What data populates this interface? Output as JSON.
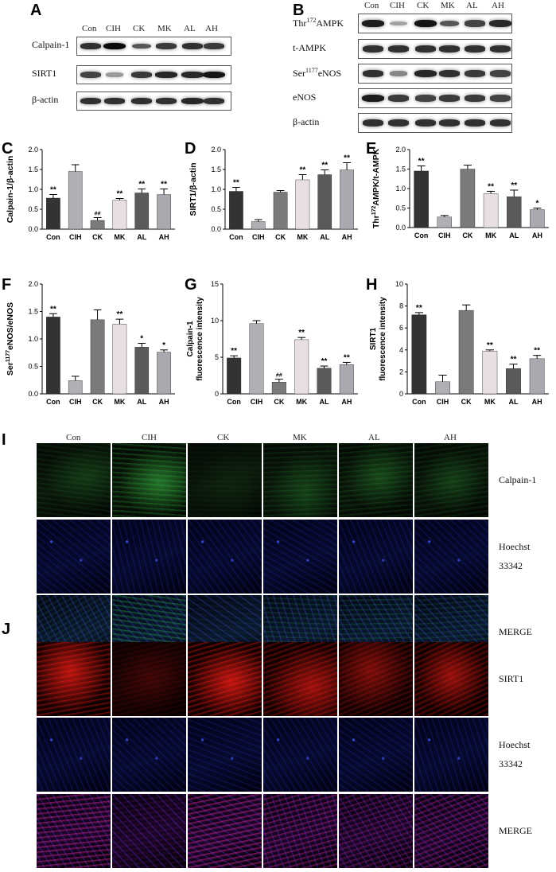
{
  "panel_letters": {
    "A": "A",
    "B": "B",
    "C": "C",
    "D": "D",
    "E": "E",
    "F": "F",
    "G": "G",
    "H": "H",
    "I": "I",
    "J": "J"
  },
  "groups": [
    "Con",
    "CIH",
    "CK",
    "MK",
    "AL",
    "AH"
  ],
  "blot_A": {
    "rows": [
      "Calpain-1",
      "SIRT1",
      "β-actin"
    ],
    "intensity": [
      [
        0.8,
        1.0,
        0.6,
        0.75,
        0.8,
        0.75
      ],
      [
        0.7,
        0.25,
        0.75,
        0.85,
        0.85,
        0.95
      ],
      [
        0.8,
        0.8,
        0.8,
        0.8,
        0.85,
        0.8
      ]
    ]
  },
  "blot_B": {
    "rows": [
      {
        "pre": "Thr",
        "sup": "172",
        "post": "AMPK"
      },
      {
        "pre": "t-AMPK",
        "sup": "",
        "post": ""
      },
      {
        "pre": "Ser",
        "sup": "1177",
        "post": "eNOS"
      },
      {
        "pre": "eNOS",
        "sup": "",
        "post": ""
      },
      {
        "pre": "β-actin",
        "sup": "",
        "post": ""
      }
    ],
    "intensity": [
      [
        0.9,
        0.2,
        0.95,
        0.6,
        0.7,
        0.85
      ],
      [
        0.8,
        0.8,
        0.8,
        0.8,
        0.8,
        0.8
      ],
      [
        0.8,
        0.35,
        0.85,
        0.8,
        0.75,
        0.7
      ],
      [
        0.9,
        0.75,
        0.7,
        0.75,
        0.75,
        0.7
      ],
      [
        0.8,
        0.8,
        0.8,
        0.8,
        0.8,
        0.8
      ]
    ]
  },
  "chart_data": [
    {
      "panel": "C",
      "type": "bar",
      "categories": [
        "Con",
        "CIH",
        "CK",
        "MK",
        "AL",
        "AH"
      ],
      "values": [
        0.78,
        1.45,
        0.22,
        0.73,
        0.91,
        0.87
      ],
      "errors": [
        0.09,
        0.17,
        0.07,
        0.04,
        0.1,
        0.14
      ],
      "ylabel": "Calpain-1/β-actin",
      "ylim": [
        0,
        2.0
      ],
      "yticks": [
        "0.0",
        "0.5",
        "1.0",
        "1.5",
        "2.0"
      ],
      "annotations": [
        "**",
        "",
        "##",
        "**",
        "**",
        "**"
      ]
    },
    {
      "panel": "D",
      "type": "bar",
      "categories": [
        "Con",
        "CIH",
        "CK",
        "MK",
        "AL",
        "AH"
      ],
      "values": [
        0.95,
        0.19,
        0.93,
        1.24,
        1.37,
        1.49
      ],
      "errors": [
        0.1,
        0.05,
        0.04,
        0.13,
        0.12,
        0.18
      ],
      "ylabel": "SIRT1/β-actin",
      "ylim": [
        0,
        2.0
      ],
      "yticks": [
        "0.0",
        "0.5",
        "1.0",
        "1.5",
        "2.0"
      ],
      "annotations": [
        "**",
        "",
        "",
        "**",
        "**",
        "**"
      ]
    },
    {
      "panel": "E",
      "type": "bar",
      "categories": [
        "Con",
        "CIH",
        "CK",
        "MK",
        "AL",
        "AH"
      ],
      "values": [
        1.45,
        0.27,
        1.5,
        0.87,
        0.79,
        0.46
      ],
      "errors": [
        0.13,
        0.04,
        0.1,
        0.06,
        0.17,
        0.04
      ],
      "ylabel": "Thr172AMPK/t-AMPK",
      "ylabel_parts": {
        "pre": "Thr",
        "sup": "172",
        "post": "AMPK/t-AMPK"
      },
      "ylim": [
        0,
        2.0
      ],
      "yticks": [
        "0.0",
        "0.5",
        "1.0",
        "1.5",
        "2.0"
      ],
      "annotations": [
        "**",
        "",
        "",
        "**",
        "**",
        "*"
      ]
    },
    {
      "panel": "F",
      "type": "bar",
      "categories": [
        "Con",
        "CIH",
        "CK",
        "MK",
        "AL",
        "AH"
      ],
      "values": [
        1.4,
        0.24,
        1.35,
        1.27,
        0.85,
        0.76
      ],
      "errors": [
        0.06,
        0.08,
        0.18,
        0.09,
        0.07,
        0.04
      ],
      "ylabel": "Ser1177eNOS/eNOS",
      "ylabel_parts": {
        "pre": "Ser",
        "sup": "1177",
        "post": "eNOS/eNOS"
      },
      "ylim": [
        0,
        2.0
      ],
      "yticks": [
        "0.0",
        "0.5",
        "1.0",
        "1.5",
        "2.0"
      ],
      "annotations": [
        "**",
        "",
        "",
        "**",
        "*",
        "*"
      ]
    },
    {
      "panel": "G",
      "type": "bar",
      "categories": [
        "Con",
        "CIH",
        "CK",
        "MK",
        "AL",
        "AH"
      ],
      "values": [
        4.9,
        9.6,
        1.6,
        7.4,
        3.5,
        4.0
      ],
      "errors": [
        0.3,
        0.4,
        0.4,
        0.3,
        0.3,
        0.3
      ],
      "ylabel": "Calpain-1\nfluorescence intensity",
      "ylabel_lines": [
        "Calpain-1",
        "fluorescence intensity"
      ],
      "ylim": [
        0,
        15
      ],
      "yticks": [
        "0",
        "5",
        "10",
        "15"
      ],
      "annotations": [
        "**",
        "",
        "##",
        "**",
        "**",
        "**"
      ]
    },
    {
      "panel": "H",
      "type": "bar",
      "categories": [
        "Con",
        "CIH",
        "CK",
        "MK",
        "AL",
        "AH"
      ],
      "values": [
        7.2,
        1.1,
        7.6,
        3.9,
        2.3,
        3.2
      ],
      "errors": [
        0.2,
        0.6,
        0.5,
        0.1,
        0.4,
        0.3
      ],
      "ylabel": "SIRT1\nfluorescence intensity",
      "ylabel_lines": [
        "SIRT1",
        "fluorescence intensity"
      ],
      "ylim": [
        0,
        10
      ],
      "yticks": [
        "0",
        "2",
        "4",
        "6",
        "8",
        "10"
      ],
      "annotations": [
        "**",
        "",
        "",
        "**",
        "**",
        "**"
      ]
    }
  ],
  "bar_colors": [
    "#333333",
    "#b0b0b4",
    "#7a7a7a",
    "#e8e0e0",
    "#5a5a5a",
    "#a9a9b0"
  ],
  "panel_I": {
    "row_labels": [
      "Calpain-1",
      "Hoechst\n33342",
      "MERGE"
    ],
    "row_label_lines": [
      [
        "Calpain-1"
      ],
      [
        "Hoechst",
        "33342"
      ],
      [
        "MERGE"
      ]
    ],
    "green_intensity": [
      0.35,
      0.95,
      0.15,
      0.45,
      0.5,
      0.4
    ]
  },
  "panel_J": {
    "row_label_lines": [
      [
        "SIRT1"
      ],
      [
        "Hoechst",
        "33342"
      ],
      [
        "MERGE"
      ]
    ],
    "red_intensity": [
      0.9,
      0.2,
      0.95,
      0.75,
      0.55,
      0.7
    ]
  }
}
